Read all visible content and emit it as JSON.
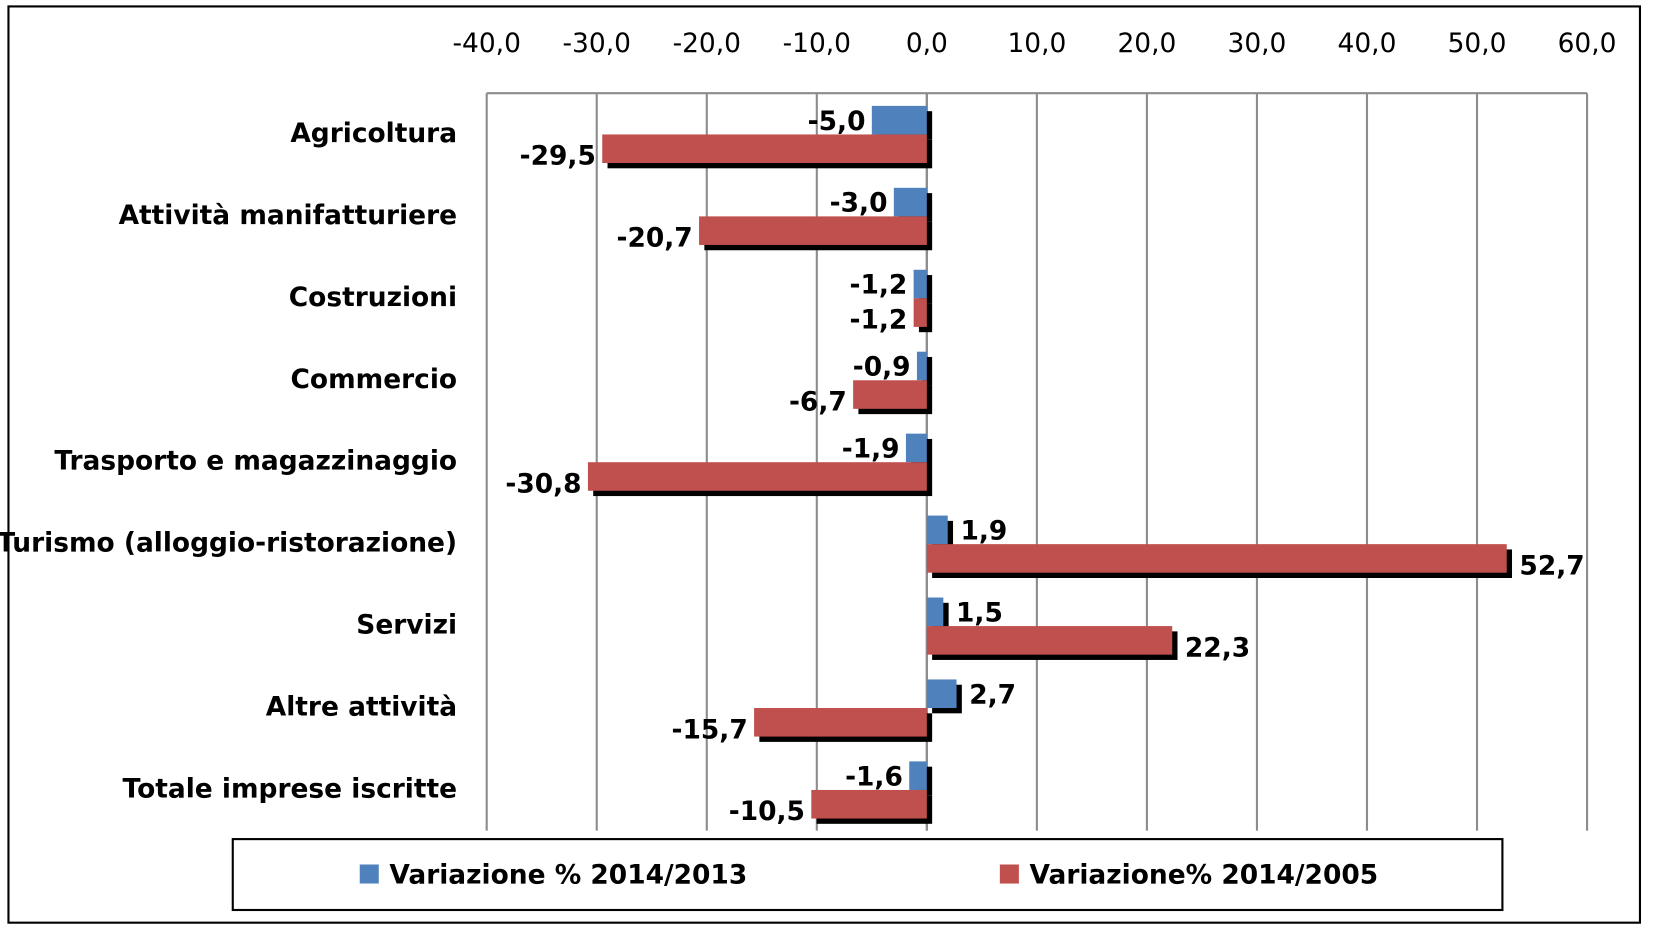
{
  "chart_data": {
    "type": "barh",
    "categories": [
      "Agricoltura",
      "Attività manifatturiere",
      "Costruzioni",
      "Commercio",
      "Trasporto e magazzinaggio",
      "Turismo (alloggio-ristorazione)",
      "Servizi",
      "Altre attività",
      "Totale imprese iscritte"
    ],
    "series": [
      {
        "name": "Variazione % 2014/2013",
        "color": "#4f81bd",
        "values": [
          -5.0,
          -3.0,
          -1.2,
          -0.9,
          -1.9,
          1.9,
          1.5,
          2.7,
          -1.6
        ],
        "value_labels": [
          "-5,0",
          "-3,0",
          "-1,2",
          "-0,9",
          "-1,9",
          "1,9",
          "1,5",
          "2,7",
          "-1,6"
        ]
      },
      {
        "name": "Variazione% 2014/2005",
        "color": "#c0504d",
        "values": [
          -29.5,
          -20.7,
          -1.2,
          -6.7,
          -30.8,
          52.7,
          22.3,
          -15.7,
          -10.5
        ],
        "value_labels": [
          "-29,5",
          "-20,7",
          "-1,2",
          "-6,7",
          "-30,8",
          "52,7",
          "22,3",
          "-15,7",
          "-10,5"
        ]
      }
    ],
    "xlim": [
      -40,
      60
    ],
    "xticks": [
      {
        "value": -40,
        "label": "-40,0"
      },
      {
        "value": -30,
        "label": "-30,0"
      },
      {
        "value": -20,
        "label": "-20,0"
      },
      {
        "value": -10,
        "label": "-10,0"
      },
      {
        "value": 0,
        "label": "0,0"
      },
      {
        "value": 10,
        "label": "10,0"
      },
      {
        "value": 20,
        "label": "20,0"
      },
      {
        "value": 30,
        "label": "30,0"
      },
      {
        "value": 40,
        "label": "40,0"
      },
      {
        "value": 50,
        "label": "50,0"
      },
      {
        "value": 60,
        "label": "60,0"
      }
    ],
    "grid": true,
    "legend": "bottom"
  }
}
